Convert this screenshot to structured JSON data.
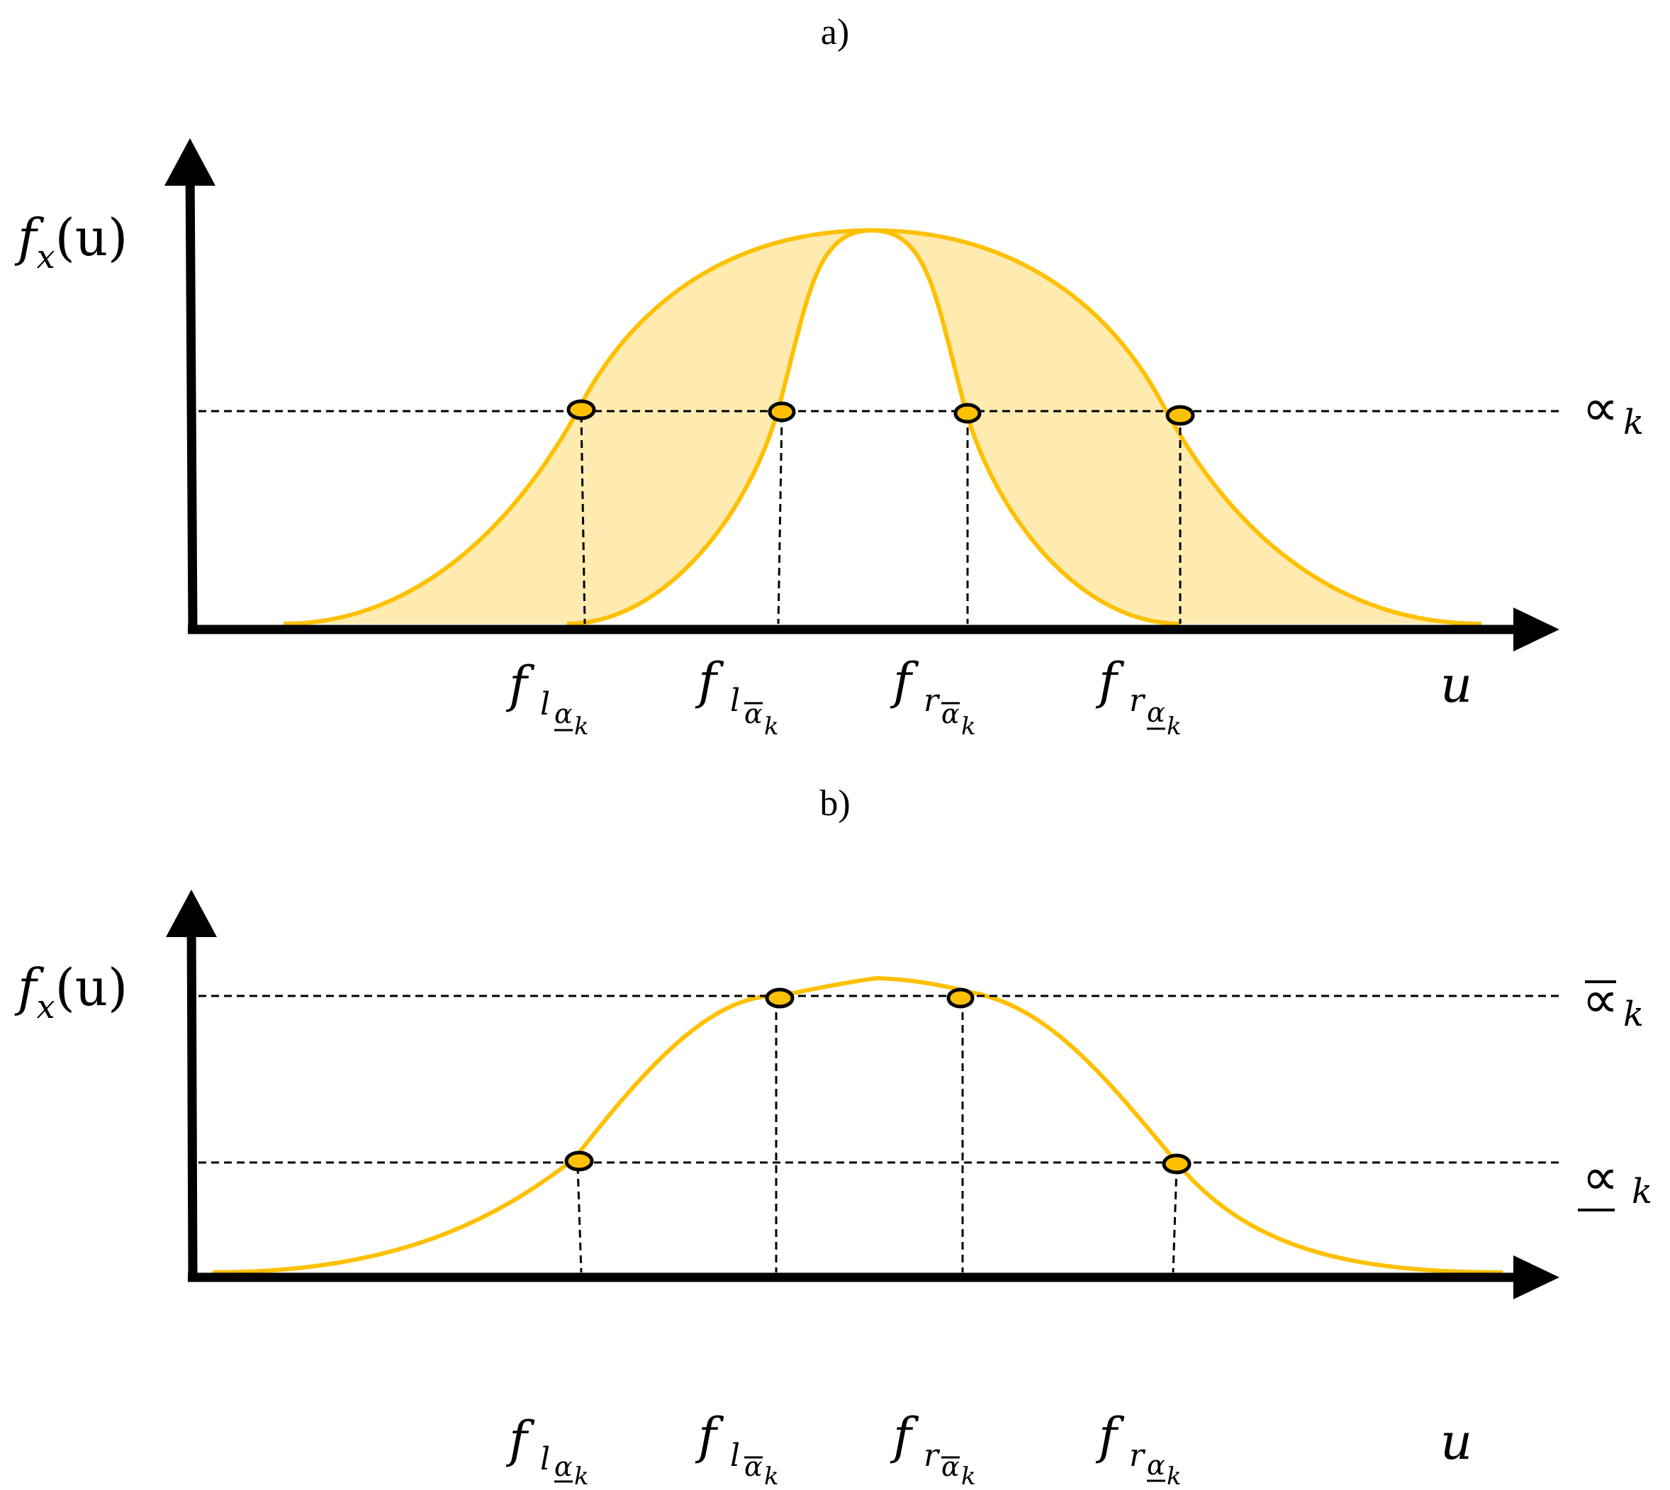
{
  "panel_a": {
    "label": "a)",
    "y_label": {
      "base": "f",
      "sub": "x",
      "arg": "(u)"
    },
    "x_label": "u",
    "level_label": {
      "symbol": "∝",
      "sub": "k"
    },
    "x_labels": [
      {
        "base": "f",
        "sub1": "l",
        "sub2": "α",
        "bar": "under",
        "sub3": "k"
      },
      {
        "base": "f",
        "sub1": "l",
        "sub2": "α",
        "bar": "over",
        "sub3": "k"
      },
      {
        "base": "f",
        "sub1": "r",
        "sub2": "α",
        "bar": "over",
        "sub3": "k"
      },
      {
        "base": "f",
        "sub1": "r",
        "sub2": "α",
        "bar": "under",
        "sub3": "k"
      }
    ]
  },
  "panel_b": {
    "label": "b)",
    "y_label": {
      "base": "f",
      "sub": "x",
      "arg": "(u)"
    },
    "x_label": "u",
    "upper_level_label": {
      "symbol": "∝",
      "bar": "over",
      "sub": "k"
    },
    "lower_level_label": {
      "symbol": "∝",
      "bar": "under",
      "sub": "k"
    },
    "x_labels": [
      {
        "base": "f",
        "sub1": "l",
        "sub2": "α",
        "bar": "under",
        "sub3": "k"
      },
      {
        "base": "f",
        "sub1": "l",
        "sub2": "α",
        "bar": "over",
        "sub3": "k"
      },
      {
        "base": "f",
        "sub1": "r",
        "sub2": "α",
        "bar": "over",
        "sub3": "k"
      },
      {
        "base": "f",
        "sub1": "r",
        "sub2": "α",
        "bar": "under",
        "sub3": "k"
      }
    ]
  },
  "colors": {
    "curve": "#FFC000",
    "band_fill": "#FFEBB0",
    "axis": "#000000"
  }
}
